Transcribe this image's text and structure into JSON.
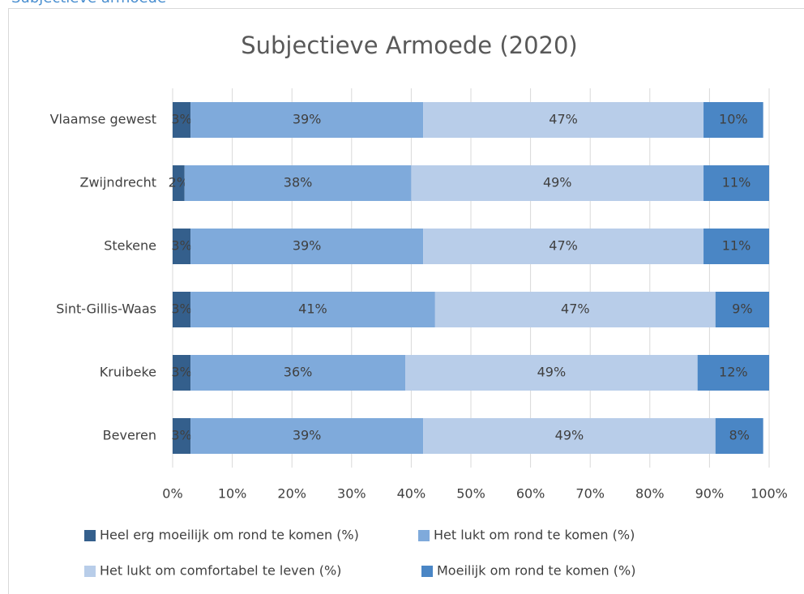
{
  "heading": "Subjectieve armoede",
  "chart_data": {
    "type": "bar",
    "orientation": "horizontal",
    "stacked": true,
    "title": "Subjectieve Armoede (2020)",
    "categories": [
      "Vlaamse gewest",
      "Zwijndrecht",
      "Stekene",
      "Sint-Gillis-Waas",
      "Kruibeke",
      "Beveren"
    ],
    "series": [
      {
        "name": "Heel erg moeilijk om rond te komen (%)",
        "color": "#345f8c",
        "values": [
          3,
          2,
          3,
          3,
          3,
          3
        ],
        "value_labels": [
          "3%",
          "2%",
          "3%",
          "3%",
          "3%",
          "3%"
        ]
      },
      {
        "name": "Het lukt om rond te komen (%)",
        "color": "#7faadb",
        "values": [
          39,
          38,
          39,
          41,
          36,
          39
        ],
        "value_labels": [
          "39%",
          "38%",
          "39%",
          "41%",
          "36%",
          "39%"
        ]
      },
      {
        "name": "Het lukt om comfortabel te leven (%)",
        "color": "#b8cde9",
        "values": [
          47,
          49,
          47,
          47,
          49,
          49
        ],
        "value_labels": [
          "47%",
          "49%",
          "47%",
          "47%",
          "49%",
          "49%"
        ]
      },
      {
        "name": "Moeilijk om rond te komen (%)",
        "color": "#4a86c5",
        "values": [
          10,
          11,
          11,
          9,
          12,
          8
        ],
        "value_labels": [
          "10%",
          "11%",
          "11%",
          "9%",
          "12%",
          "8%"
        ]
      }
    ],
    "xlim": [
      0,
      100
    ],
    "xticks": [
      {
        "value": 0,
        "label": "0%"
      },
      {
        "value": 10,
        "label": "10%"
      },
      {
        "value": 20,
        "label": "20%"
      },
      {
        "value": 30,
        "label": "30%"
      },
      {
        "value": 40,
        "label": "40%"
      },
      {
        "value": 50,
        "label": "50%"
      },
      {
        "value": 60,
        "label": "60%"
      },
      {
        "value": 70,
        "label": "70%"
      },
      {
        "value": 80,
        "label": "80%"
      },
      {
        "value": 90,
        "label": "90%"
      },
      {
        "value": 100,
        "label": "100%"
      }
    ],
    "grid": true,
    "legend": "bottom"
  }
}
